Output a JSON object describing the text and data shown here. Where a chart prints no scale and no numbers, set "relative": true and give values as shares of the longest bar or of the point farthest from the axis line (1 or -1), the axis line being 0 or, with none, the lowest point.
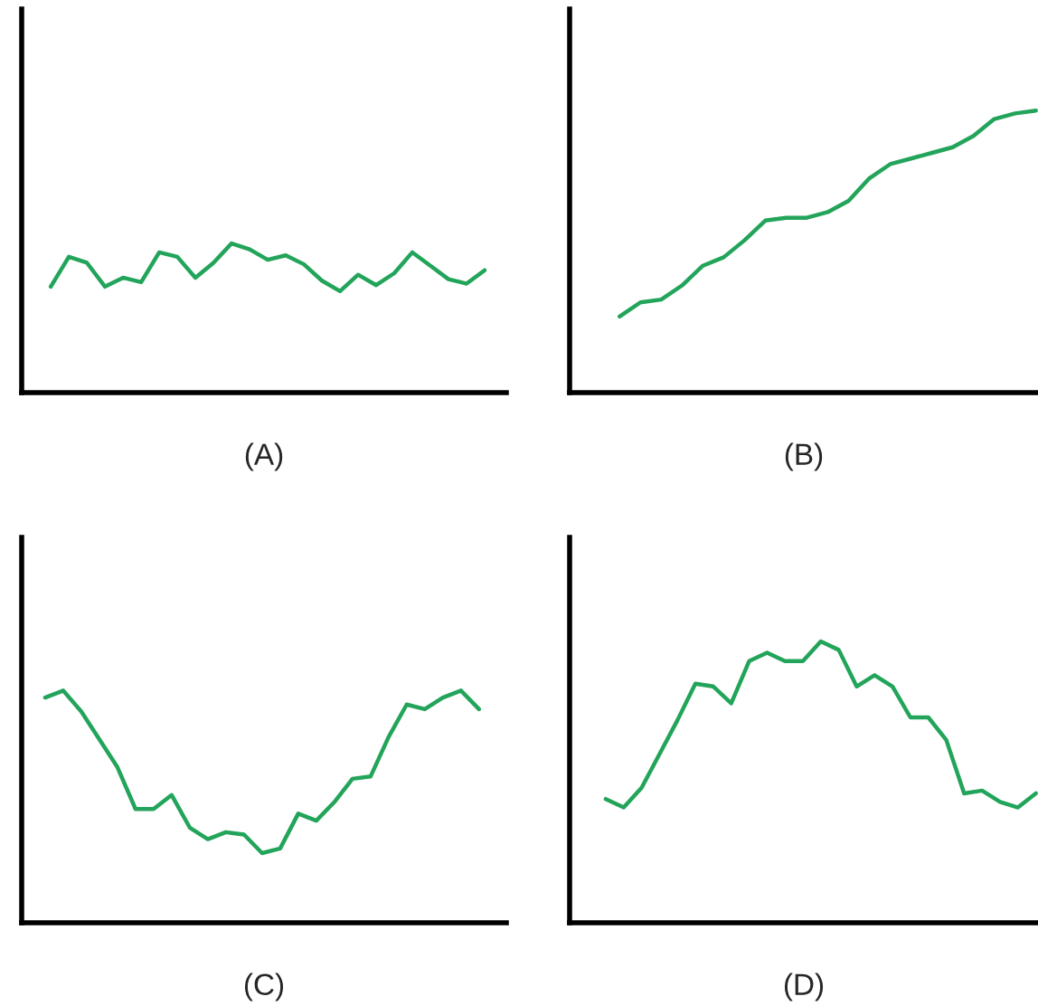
{
  "chart_data": [
    {
      "type": "line",
      "relative": true,
      "tick_labels": false,
      "xlabel": "(A)",
      "categories": [
        null,
        null,
        null,
        null,
        null,
        null,
        null,
        null,
        null,
        null,
        null,
        null,
        null,
        null,
        null,
        null,
        null,
        null,
        null,
        null,
        null,
        null,
        null,
        null,
        null
      ],
      "series": [
        {
          "color": "#22a45a",
          "values": [
            0.71,
            0.91,
            0.87,
            0.71,
            0.77,
            0.74,
            0.94,
            0.91,
            0.77,
            0.87,
            1,
            0.96,
            0.89,
            0.92,
            0.86,
            0.75,
            0.68,
            0.79,
            0.72,
            0.8,
            0.94,
            0.85,
            0.76,
            0.73,
            0.82
          ]
        }
      ]
    },
    {
      "type": "line",
      "relative": true,
      "tick_labels": false,
      "xlabel": "(B)",
      "categories": [
        null,
        null,
        null,
        null,
        null,
        null,
        null,
        null,
        null,
        null,
        null,
        null,
        null,
        null,
        null,
        null,
        null,
        null,
        null,
        null,
        null
      ],
      "series": [
        {
          "color": "#22a45a",
          "values": [
            0.27,
            0.32,
            0.33,
            0.38,
            0.45,
            0.48,
            0.54,
            0.61,
            0.62,
            0.62,
            0.64,
            0.68,
            0.76,
            0.81,
            0.83,
            0.85,
            0.87,
            0.91,
            0.97,
            0.99,
            1
          ]
        }
      ]
    },
    {
      "type": "line",
      "relative": true,
      "tick_labels": false,
      "xlabel": "(C)",
      "categories": [
        null,
        null,
        null,
        null,
        null,
        null,
        null,
        null,
        null,
        null,
        null,
        null,
        null,
        null,
        null,
        null,
        null,
        null,
        null,
        null,
        null,
        null,
        null,
        null,
        null
      ],
      "series": [
        {
          "color": "#22a45a",
          "values": [
            0.97,
            1,
            0.91,
            0.79,
            0.67,
            0.49,
            0.49,
            0.55,
            0.41,
            0.36,
            0.39,
            0.38,
            0.3,
            0.32,
            0.47,
            0.44,
            0.52,
            0.62,
            0.63,
            0.8,
            0.94,
            0.92,
            0.97,
            1,
            0.92
          ]
        }
      ]
    },
    {
      "type": "line",
      "relative": true,
      "tick_labels": false,
      "xlabel": "(D)",
      "categories": [
        null,
        null,
        null,
        null,
        null,
        null,
        null,
        null,
        null,
        null,
        null,
        null,
        null,
        null,
        null,
        null,
        null,
        null,
        null,
        null,
        null,
        null,
        null,
        null,
        null
      ],
      "series": [
        {
          "color": "#22a45a",
          "values": [
            0.44,
            0.41,
            0.48,
            0.6,
            0.72,
            0.85,
            0.84,
            0.78,
            0.93,
            0.96,
            0.93,
            0.93,
            1,
            0.97,
            0.84,
            0.88,
            0.84,
            0.73,
            0.73,
            0.65,
            0.46,
            0.47,
            0.43,
            0.41,
            0.46
          ]
        }
      ]
    }
  ]
}
